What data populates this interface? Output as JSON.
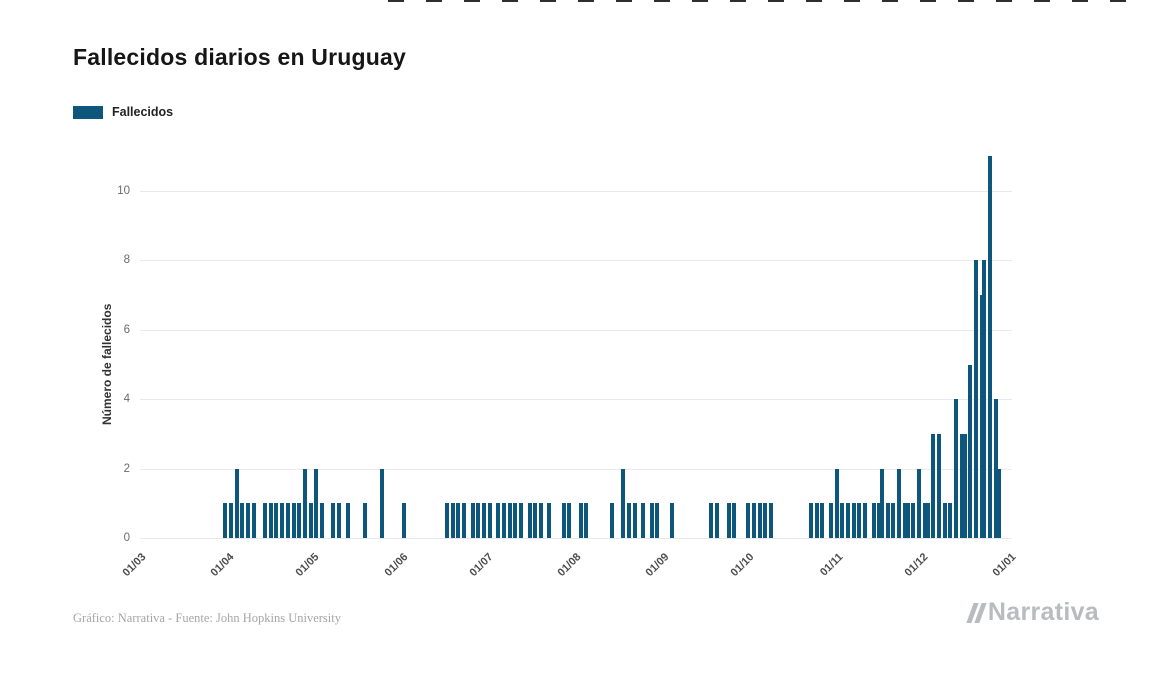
{
  "page": {
    "title": "Fallecidos diarios en Uruguay",
    "footer_credit": "Gráfico: Narrativa - Fuente: John Hopkins University",
    "brand": "Narrativa"
  },
  "legend": {
    "label": "Fallecidos",
    "color": "#0d567c"
  },
  "chart_data": {
    "type": "bar",
    "title": "Fallecidos diarios en Uruguay",
    "series_name": "Fallecidos",
    "xlabel": "",
    "ylabel": "Número de fallecidos",
    "ylim": [
      0,
      11
    ],
    "y_ticks": [
      0,
      2,
      4,
      6,
      8,
      10
    ],
    "x_ticks": [
      "01/03",
      "01/04",
      "01/05",
      "01/06",
      "01/07",
      "01/08",
      "01/09",
      "01/10",
      "01/11",
      "01/12",
      "01/01"
    ],
    "date_format": "dd/mm",
    "grid": true,
    "legend_position": "top-left",
    "bar_color": "#0d567c",
    "points": [
      {
        "d": "31/03",
        "v": 1
      },
      {
        "d": "02/04",
        "v": 1
      },
      {
        "d": "04/04",
        "v": 2
      },
      {
        "d": "06/04",
        "v": 1
      },
      {
        "d": "08/04",
        "v": 1
      },
      {
        "d": "10/04",
        "v": 1
      },
      {
        "d": "14/04",
        "v": 1
      },
      {
        "d": "16/04",
        "v": 1
      },
      {
        "d": "18/04",
        "v": 1
      },
      {
        "d": "20/04",
        "v": 1
      },
      {
        "d": "22/04",
        "v": 1
      },
      {
        "d": "24/04",
        "v": 1
      },
      {
        "d": "26/04",
        "v": 1
      },
      {
        "d": "28/04",
        "v": 2
      },
      {
        "d": "30/04",
        "v": 1
      },
      {
        "d": "02/05",
        "v": 2
      },
      {
        "d": "04/05",
        "v": 1
      },
      {
        "d": "08/05",
        "v": 1
      },
      {
        "d": "10/05",
        "v": 1
      },
      {
        "d": "13/05",
        "v": 1
      },
      {
        "d": "19/05",
        "v": 1
      },
      {
        "d": "25/05",
        "v": 2
      },
      {
        "d": "02/06",
        "v": 1
      },
      {
        "d": "17/06",
        "v": 1
      },
      {
        "d": "19/06",
        "v": 1
      },
      {
        "d": "21/06",
        "v": 1
      },
      {
        "d": "23/06",
        "v": 1
      },
      {
        "d": "26/06",
        "v": 1
      },
      {
        "d": "28/06",
        "v": 1
      },
      {
        "d": "30/06",
        "v": 1
      },
      {
        "d": "02/07",
        "v": 1
      },
      {
        "d": "05/07",
        "v": 1
      },
      {
        "d": "07/07",
        "v": 1
      },
      {
        "d": "09/07",
        "v": 1
      },
      {
        "d": "11/07",
        "v": 1
      },
      {
        "d": "13/07",
        "v": 1
      },
      {
        "d": "16/07",
        "v": 1
      },
      {
        "d": "18/07",
        "v": 1
      },
      {
        "d": "20/07",
        "v": 1
      },
      {
        "d": "23/07",
        "v": 1
      },
      {
        "d": "28/07",
        "v": 1
      },
      {
        "d": "30/07",
        "v": 1
      },
      {
        "d": "03/08",
        "v": 1
      },
      {
        "d": "05/08",
        "v": 1
      },
      {
        "d": "14/08",
        "v": 1
      },
      {
        "d": "18/08",
        "v": 2
      },
      {
        "d": "20/08",
        "v": 1
      },
      {
        "d": "22/08",
        "v": 1
      },
      {
        "d": "25/08",
        "v": 1
      },
      {
        "d": "28/08",
        "v": 1
      },
      {
        "d": "30/08",
        "v": 1
      },
      {
        "d": "04/09",
        "v": 1
      },
      {
        "d": "18/09",
        "v": 1
      },
      {
        "d": "20/09",
        "v": 1
      },
      {
        "d": "24/09",
        "v": 1
      },
      {
        "d": "26/09",
        "v": 1
      },
      {
        "d": "01/10",
        "v": 1
      },
      {
        "d": "03/10",
        "v": 1
      },
      {
        "d": "05/10",
        "v": 1
      },
      {
        "d": "07/10",
        "v": 1
      },
      {
        "d": "09/10",
        "v": 1
      },
      {
        "d": "23/10",
        "v": 1
      },
      {
        "d": "25/10",
        "v": 1
      },
      {
        "d": "27/10",
        "v": 1
      },
      {
        "d": "30/10",
        "v": 1
      },
      {
        "d": "01/11",
        "v": 2
      },
      {
        "d": "03/11",
        "v": 1
      },
      {
        "d": "05/11",
        "v": 1
      },
      {
        "d": "07/11",
        "v": 1
      },
      {
        "d": "09/11",
        "v": 1
      },
      {
        "d": "11/11",
        "v": 1
      },
      {
        "d": "14/11",
        "v": 1
      },
      {
        "d": "16/11",
        "v": 1
      },
      {
        "d": "17/11",
        "v": 2
      },
      {
        "d": "19/11",
        "v": 1
      },
      {
        "d": "21/11",
        "v": 1
      },
      {
        "d": "23/11",
        "v": 2
      },
      {
        "d": "25/11",
        "v": 1
      },
      {
        "d": "26/11",
        "v": 1
      },
      {
        "d": "28/11",
        "v": 1
      },
      {
        "d": "30/11",
        "v": 2
      },
      {
        "d": "02/12",
        "v": 1
      },
      {
        "d": "03/12",
        "v": 1
      },
      {
        "d": "05/12",
        "v": 3
      },
      {
        "d": "07/12",
        "v": 3
      },
      {
        "d": "09/12",
        "v": 1
      },
      {
        "d": "11/12",
        "v": 1
      },
      {
        "d": "13/12",
        "v": 4
      },
      {
        "d": "15/12",
        "v": 3
      },
      {
        "d": "16/12",
        "v": 3
      },
      {
        "d": "18/12",
        "v": 5
      },
      {
        "d": "20/12",
        "v": 8
      },
      {
        "d": "22/12",
        "v": 7
      },
      {
        "d": "23/12",
        "v": 8
      },
      {
        "d": "25/12",
        "v": 11
      },
      {
        "d": "27/12",
        "v": 4
      },
      {
        "d": "28/12",
        "v": 2
      }
    ]
  }
}
